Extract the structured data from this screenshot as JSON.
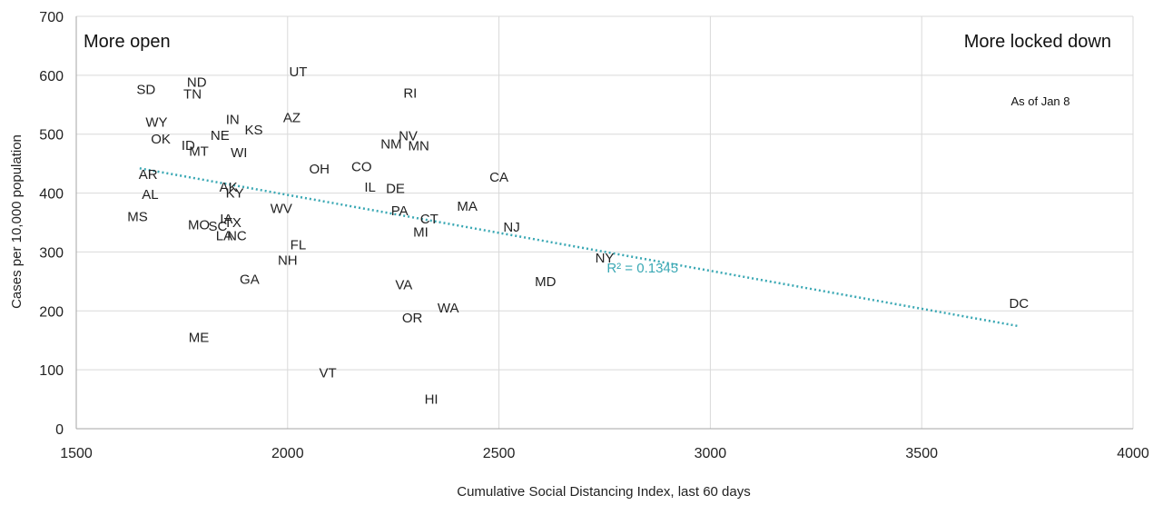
{
  "chart_data": {
    "type": "scatter",
    "xlabel": "Cumulative Social Distancing Index, last 60 days",
    "ylabel": "Cases per 10,000 population",
    "xlim": [
      1500,
      4000
    ],
    "ylim": [
      0,
      700
    ],
    "x_ticks": [
      1500,
      2000,
      2500,
      3000,
      3500,
      4000
    ],
    "y_ticks": [
      0,
      100,
      200,
      300,
      400,
      500,
      600,
      700
    ],
    "grid": true,
    "annotations": {
      "left": "More open",
      "right": "More locked down",
      "date": "As of Jan 8"
    },
    "trendline": {
      "x": [
        1650,
        3730
      ],
      "y": [
        442,
        174
      ],
      "label": "R² = 0.1345",
      "color": "#3aa8b4"
    },
    "points": [
      {
        "label": "SD",
        "x": 1665,
        "y": 576
      },
      {
        "label": "ND",
        "x": 1785,
        "y": 588
      },
      {
        "label": "TN",
        "x": 1775,
        "y": 568
      },
      {
        "label": "UT",
        "x": 2025,
        "y": 606
      },
      {
        "label": "RI",
        "x": 2290,
        "y": 570
      },
      {
        "label": "WY",
        "x": 1690,
        "y": 520
      },
      {
        "label": "IN",
        "x": 1870,
        "y": 525
      },
      {
        "label": "AZ",
        "x": 2010,
        "y": 528
      },
      {
        "label": "NE",
        "x": 1840,
        "y": 498
      },
      {
        "label": "KS",
        "x": 1920,
        "y": 507
      },
      {
        "label": "OK",
        "x": 1700,
        "y": 492
      },
      {
        "label": "NV",
        "x": 2285,
        "y": 497
      },
      {
        "label": "ID",
        "x": 1765,
        "y": 481
      },
      {
        "label": "NM",
        "x": 2245,
        "y": 483
      },
      {
        "label": "MN",
        "x": 2310,
        "y": 480
      },
      {
        "label": "MT",
        "x": 1790,
        "y": 471
      },
      {
        "label": "WI",
        "x": 1885,
        "y": 469
      },
      {
        "label": "OH",
        "x": 2075,
        "y": 441
      },
      {
        "label": "CO",
        "x": 2175,
        "y": 445
      },
      {
        "label": "CA",
        "x": 2500,
        "y": 427
      },
      {
        "label": "AR",
        "x": 1670,
        "y": 432
      },
      {
        "label": "IL",
        "x": 2195,
        "y": 410
      },
      {
        "label": "DE",
        "x": 2255,
        "y": 408
      },
      {
        "label": "AK",
        "x": 1860,
        "y": 410
      },
      {
        "label": "KY",
        "x": 1875,
        "y": 400
      },
      {
        "label": "AL",
        "x": 1675,
        "y": 398
      },
      {
        "label": "MA",
        "x": 2425,
        "y": 378
      },
      {
        "label": "WV",
        "x": 1985,
        "y": 374
      },
      {
        "label": "PA",
        "x": 2265,
        "y": 370
      },
      {
        "label": "MS",
        "x": 1645,
        "y": 360
      },
      {
        "label": "CT",
        "x": 2335,
        "y": 356
      },
      {
        "label": "IA",
        "x": 1855,
        "y": 356
      },
      {
        "label": "TX",
        "x": 1870,
        "y": 350
      },
      {
        "label": "MO",
        "x": 1790,
        "y": 346
      },
      {
        "label": "SC",
        "x": 1835,
        "y": 344
      },
      {
        "label": "NJ",
        "x": 2530,
        "y": 342
      },
      {
        "label": "MI",
        "x": 2315,
        "y": 334
      },
      {
        "label": "LA",
        "x": 1850,
        "y": 328
      },
      {
        "label": "NC",
        "x": 1880,
        "y": 328
      },
      {
        "label": "FL",
        "x": 2025,
        "y": 312
      },
      {
        "label": "NY",
        "x": 2750,
        "y": 290
      },
      {
        "label": "NH",
        "x": 2000,
        "y": 286
      },
      {
        "label": "GA",
        "x": 1910,
        "y": 254
      },
      {
        "label": "MD",
        "x": 2610,
        "y": 250
      },
      {
        "label": "VA",
        "x": 2275,
        "y": 244
      },
      {
        "label": "WA",
        "x": 2380,
        "y": 205
      },
      {
        "label": "DC",
        "x": 3730,
        "y": 213
      },
      {
        "label": "OR",
        "x": 2295,
        "y": 188
      },
      {
        "label": "ME",
        "x": 1790,
        "y": 155
      },
      {
        "label": "VT",
        "x": 2095,
        "y": 95
      },
      {
        "label": "HI",
        "x": 2340,
        "y": 50
      }
    ]
  }
}
